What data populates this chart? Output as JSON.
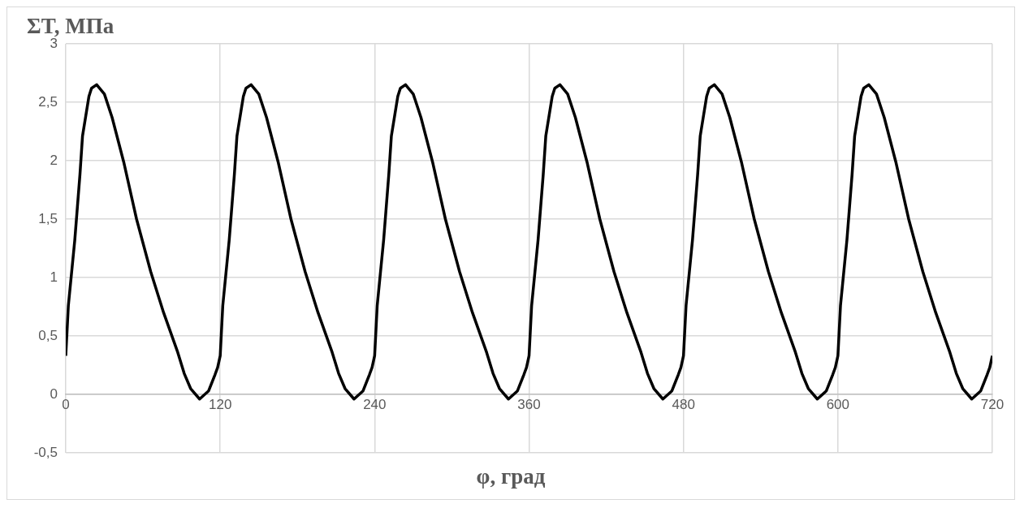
{
  "chart_data": {
    "type": "line",
    "ylabel": "ΣT, МПа",
    "xlabel": "φ, град",
    "x": [
      0,
      2,
      7,
      11,
      13,
      18,
      20,
      24,
      30,
      36,
      45,
      55,
      66,
      76,
      87,
      92,
      97,
      104,
      111,
      116,
      118,
      120,
      122,
      127,
      131,
      133,
      138,
      140,
      144,
      150,
      156,
      165,
      175,
      186,
      196,
      207,
      212,
      217,
      224,
      231,
      236,
      238,
      240,
      242,
      247,
      251,
      253,
      258,
      260,
      264,
      270,
      276,
      285,
      295,
      306,
      316,
      327,
      332,
      337,
      344,
      351,
      356,
      358,
      360,
      362,
      367,
      371,
      373,
      378,
      380,
      384,
      390,
      396,
      405,
      415,
      426,
      436,
      447,
      452,
      457,
      464,
      471,
      476,
      478,
      480,
      482,
      487,
      491,
      493,
      498,
      500,
      504,
      510,
      516,
      525,
      535,
      546,
      556,
      567,
      572,
      577,
      584,
      591,
      596,
      598,
      600,
      602,
      607,
      611,
      613,
      618,
      620,
      624,
      630,
      636,
      645,
      655,
      666,
      676,
      687,
      692,
      697,
      704,
      711,
      716,
      718,
      720
    ],
    "series": [
      {
        "color": "#000000",
        "values": [
          0.33,
          0.76,
          1.32,
          1.88,
          2.21,
          2.55,
          2.62,
          2.65,
          2.57,
          2.37,
          1.99,
          1.5,
          1.05,
          0.7,
          0.36,
          0.18,
          0.05,
          -0.04,
          0.03,
          0.17,
          0.23,
          0.33,
          0.76,
          1.32,
          1.88,
          2.21,
          2.55,
          2.62,
          2.65,
          2.57,
          2.37,
          1.99,
          1.5,
          1.05,
          0.7,
          0.36,
          0.18,
          0.05,
          -0.04,
          0.03,
          0.17,
          0.23,
          0.33,
          0.76,
          1.32,
          1.88,
          2.21,
          2.55,
          2.62,
          2.65,
          2.57,
          2.37,
          1.99,
          1.5,
          1.05,
          0.7,
          0.36,
          0.18,
          0.05,
          -0.04,
          0.03,
          0.17,
          0.23,
          0.33,
          0.76,
          1.32,
          1.88,
          2.21,
          2.55,
          2.62,
          2.65,
          2.57,
          2.37,
          1.99,
          1.5,
          1.05,
          0.7,
          0.36,
          0.18,
          0.05,
          -0.04,
          0.03,
          0.17,
          0.23,
          0.33,
          0.76,
          1.32,
          1.88,
          2.21,
          2.55,
          2.62,
          2.65,
          2.57,
          2.37,
          1.99,
          1.5,
          1.05,
          0.7,
          0.36,
          0.18,
          0.05,
          -0.04,
          0.03,
          0.17,
          0.23,
          0.33,
          0.76,
          1.32,
          1.88,
          2.21,
          2.55,
          2.62,
          2.65,
          2.57,
          2.37,
          1.99,
          1.5,
          1.05,
          0.7,
          0.36,
          0.18,
          0.05,
          -0.04,
          0.03,
          0.17,
          0.23,
          0.33
        ]
      }
    ],
    "xlim": [
      0,
      720
    ],
    "xticks": [
      0,
      120,
      240,
      360,
      480,
      600,
      720
    ],
    "ylim": [
      -0.5,
      3
    ],
    "yticks": [
      {
        "value": -0.5,
        "label": "-0,5"
      },
      0,
      {
        "value": 0.5,
        "label": "0,5"
      },
      1,
      {
        "value": 1.5,
        "label": "1,5"
      },
      2,
      {
        "value": 2.5,
        "label": "2,5"
      },
      3
    ],
    "grid": true,
    "legend": false,
    "marker": "none",
    "line_style": "solid"
  }
}
